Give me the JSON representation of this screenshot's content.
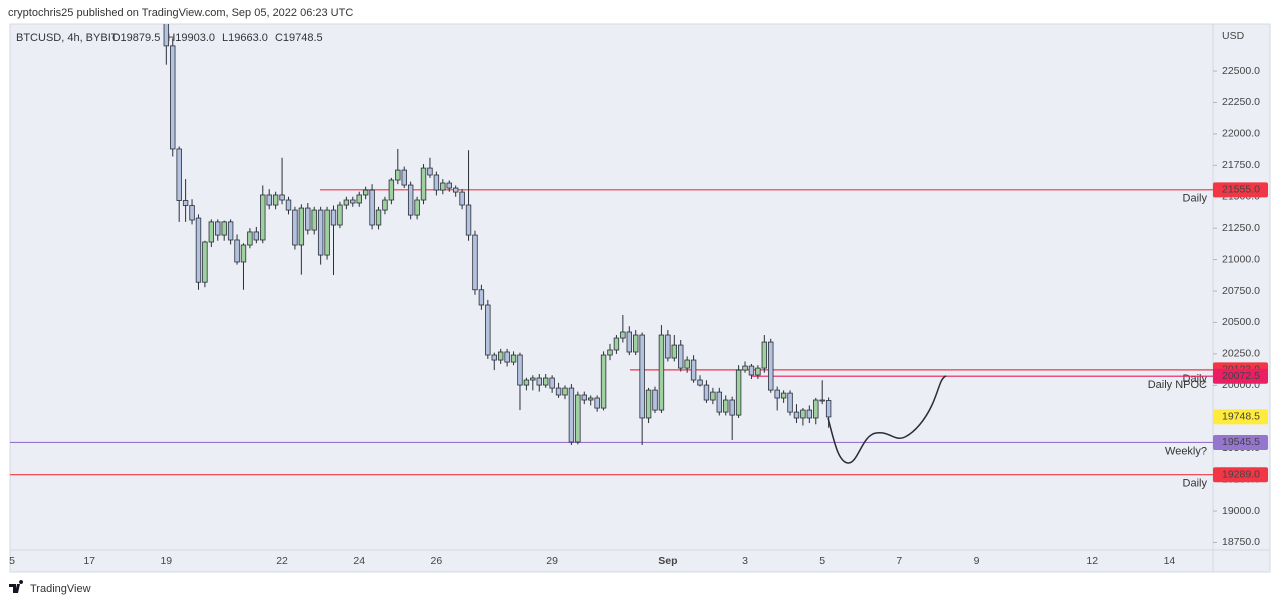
{
  "header": {
    "published": "cryptochris25 published on TradingView.com, Sep 05, 2022 06:23 UTC",
    "brand": "TradingView"
  },
  "chart_data": {
    "type": "candlestick",
    "symbol": "BTCUSD, 4h, BYBIT",
    "ohlc_legend": [
      "O19879.5",
      "H19903.0",
      "L19663.0",
      "C19748.5"
    ],
    "currency": "USD",
    "up_color": "#9fd09f",
    "down_color": "#b3c3df",
    "outline_color": "#2a2e39",
    "categories": [
      "5",
      null,
      null,
      null,
      null,
      null,
      null,
      null,
      null,
      null,
      null,
      null,
      "17",
      null,
      null,
      null,
      null,
      null,
      null,
      null,
      null,
      null,
      null,
      null,
      "19",
      null,
      null,
      null,
      null,
      null,
      null,
      null,
      null,
      null,
      null,
      null,
      null,
      null,
      null,
      null,
      null,
      null,
      "22",
      null,
      null,
      null,
      null,
      null,
      null,
      null,
      null,
      null,
      null,
      null,
      "24",
      null,
      null,
      null,
      null,
      null,
      null,
      null,
      null,
      null,
      null,
      null,
      "26",
      null,
      null,
      null,
      null,
      null,
      null,
      null,
      null,
      null,
      null,
      null,
      null,
      null,
      null,
      null,
      null,
      null,
      "29",
      null,
      null,
      null,
      null,
      null,
      null,
      null,
      null,
      null,
      null,
      null,
      null,
      null,
      null,
      null,
      null,
      null,
      "Sep",
      null,
      null,
      null,
      null,
      null,
      null,
      null,
      null,
      null,
      null,
      null,
      "3",
      null,
      null,
      null,
      null,
      null,
      null,
      null,
      null,
      null,
      null,
      null,
      "5",
      null,
      null,
      null,
      null,
      null,
      null,
      null,
      null,
      null,
      null,
      null,
      "7",
      null,
      null,
      null,
      null,
      null,
      null,
      null,
      null,
      null,
      null,
      null,
      "9",
      null,
      null,
      null,
      null,
      null,
      null,
      null,
      null,
      null,
      null,
      null,
      null,
      null,
      null,
      null,
      null,
      null,
      "12",
      null,
      null,
      null,
      null,
      null,
      null,
      null,
      null,
      null,
      null,
      null,
      "14",
      null,
      null,
      null,
      null,
      null,
      null
    ],
    "open": [
      null,
      null,
      null,
      null,
      null,
      null,
      null,
      null,
      null,
      null,
      null,
      null,
      null,
      null,
      null,
      null,
      null,
      null,
      null,
      null,
      null,
      null,
      null,
      null,
      22900,
      22700,
      21880,
      21470,
      21430,
      21330,
      20820,
      21140,
      21300,
      21195,
      21300,
      21156,
      20981,
      21116,
      21220,
      21156,
      21514,
      21434,
      21514,
      21474,
      21394,
      21116,
      21410,
      21235,
      21394,
      21036,
      21394,
      21275,
      21434,
      21474,
      21450,
      21514,
      21553,
      21275,
      21394,
      21474,
      21633,
      21712,
      21593,
      21354,
      21474,
      21728,
      21673,
      21553,
      21609,
      21569,
      21537,
      21434,
      21195,
      20760,
      20639,
      20241,
      20201,
      20265,
      20185,
      20241,
      20002,
      20042,
      20058,
      20002,
      20058,
      19978,
      19923,
      19978,
      19549,
      19923,
      19883,
      19899,
      19819,
      20241,
      20281,
      20376,
      20424,
      20265,
      20400,
      19740,
      19962,
      19803,
      20400,
      20217,
      20320,
      20137,
      20201,
      20042,
      20002,
      19883,
      19946,
      19787,
      19883,
      19763,
      20121,
      20153,
      20082,
      20137,
      20344,
      19962,
      19899,
      19938,
      19787,
      19740,
      19803,
      19740,
      19883,
      19879.5,
      null,
      null,
      null,
      null,
      null,
      null,
      null,
      null,
      null,
      null,
      null,
      null,
      null,
      null,
      null,
      null,
      null,
      null,
      null,
      null,
      null,
      null,
      null,
      null,
      null,
      null,
      null,
      null,
      null,
      null,
      null,
      null,
      null,
      null,
      null,
      null,
      null,
      null,
      null,
      null,
      null,
      null,
      null,
      null,
      null,
      null,
      null,
      null,
      null,
      null,
      null,
      null,
      null,
      null,
      null,
      null,
      null,
      null,
      null
    ],
    "high": [
      null,
      null,
      null,
      null,
      null,
      null,
      null,
      null,
      null,
      null,
      null,
      null,
      null,
      null,
      null,
      null,
      null,
      null,
      null,
      null,
      null,
      null,
      null,
      null,
      23100,
      22760,
      21900,
      21640,
      21480,
      21360,
      21150,
      21320,
      21320,
      21310,
      21320,
      21200,
      21130,
      21250,
      21260,
      21590,
      21560,
      21540,
      21810,
      21500,
      21420,
      21440,
      21450,
      21420,
      21420,
      21420,
      21430,
      21460,
      21500,
      21500,
      21540,
      21580,
      21600,
      21420,
      21500,
      21650,
      21880,
      21740,
      21620,
      21500,
      21760,
      21810,
      21700,
      21640,
      21630,
      21590,
      21560,
      21870,
      21230,
      20800,
      20680,
      20260,
      20290,
      20290,
      20270,
      20260,
      20060,
      20080,
      20090,
      20090,
      20080,
      20020,
      20000,
      20010,
      19950,
      19950,
      19920,
      19920,
      20270,
      20330,
      20400,
      20559,
      20470,
      20440,
      20420,
      19980,
      19990,
      20479,
      20440,
      20400,
      20360,
      20230,
      20240,
      20080,
      20040,
      19980,
      19980,
      19920,
      19910,
      20160,
      20190,
      20170,
      20160,
      20400,
      20370,
      19990,
      19960,
      19960,
      19850,
      19820,
      19840,
      19900,
      20040,
      19903.0,
      null,
      null,
      null,
      null,
      null,
      null,
      null,
      null,
      null,
      null,
      null,
      null,
      null,
      null,
      null,
      null,
      null,
      null,
      null,
      null,
      null,
      null,
      null,
      null,
      null,
      null,
      null,
      null,
      null,
      null,
      null,
      null,
      null,
      null,
      null,
      null,
      null,
      null,
      null,
      null,
      null,
      null,
      null,
      null,
      null,
      null,
      null,
      null,
      null,
      null,
      null,
      null,
      null,
      null,
      null,
      null,
      null,
      null,
      null
    ],
    "low": [
      null,
      null,
      null,
      null,
      null,
      null,
      null,
      null,
      null,
      null,
      null,
      null,
      null,
      null,
      null,
      null,
      null,
      null,
      null,
      null,
      null,
      null,
      null,
      null,
      22550,
      21820,
      21300,
      21300,
      21280,
      20760,
      20780,
      21100,
      21150,
      21150,
      21120,
      20960,
      20760,
      21090,
      21130,
      21130,
      21400,
      21400,
      21440,
      21360,
      21080,
      20880,
      21200,
      21200,
      20960,
      21000,
      20877,
      21250,
      21400,
      21420,
      21420,
      21480,
      21240,
      21240,
      21360,
      21440,
      21600,
      21570,
      21320,
      21320,
      21440,
      21650,
      21510,
      21520,
      21540,
      21500,
      21400,
      21150,
      20720,
      20600,
      20210,
      20121,
      20170,
      20150,
      20160,
      19803,
      19960,
      19960,
      19950,
      19980,
      19940,
      19900,
      19890,
      19525,
      19530,
      19850,
      19840,
      19790,
      19800,
      20200,
      20250,
      20340,
      20240,
      20240,
      19525,
      19700,
      19780,
      19780,
      20190,
      20190,
      20110,
      20100,
      20020,
      19990,
      19860,
      19850,
      19760,
      19760,
      19565,
      19740,
      20100,
      20050,
      20050,
      20100,
      19940,
      19800,
      19860,
      19760,
      19700,
      19680,
      19700,
      19690,
      19850,
      19663.0,
      null,
      null,
      null,
      null,
      null,
      null,
      null,
      null,
      null,
      null,
      null,
      null,
      null,
      null,
      null,
      null,
      null,
      null,
      null,
      null,
      null,
      null,
      null,
      null,
      null,
      null,
      null,
      null,
      null,
      null,
      null,
      null,
      null,
      null,
      null,
      null,
      null,
      null,
      null,
      null,
      null,
      null,
      null,
      null,
      null,
      null,
      null,
      null,
      null,
      null,
      null,
      null,
      null,
      null,
      null,
      null,
      null,
      null,
      null
    ],
    "close": [
      null,
      null,
      null,
      null,
      null,
      null,
      null,
      null,
      null,
      null,
      null,
      null,
      null,
      null,
      null,
      null,
      null,
      null,
      null,
      null,
      null,
      null,
      null,
      null,
      22700,
      21880,
      21470,
      21430,
      21315,
      20820,
      21140,
      21300,
      21195,
      21300,
      21156,
      20981,
      21116,
      21220,
      21156,
      21514,
      21434,
      21514,
      21474,
      21394,
      21116,
      21410,
      21235,
      21394,
      21036,
      21394,
      21275,
      21434,
      21474,
      21450,
      21514,
      21553,
      21275,
      21394,
      21474,
      21633,
      21712,
      21593,
      21354,
      21474,
      21728,
      21673,
      21553,
      21609,
      21569,
      21537,
      21434,
      21195,
      20760,
      20639,
      20241,
      20201,
      20265,
      20185,
      20241,
      20002,
      20042,
      20058,
      20002,
      20058,
      19978,
      19923,
      19978,
      19549,
      19923,
      19883,
      19899,
      19819,
      20241,
      20281,
      20376,
      20424,
      20265,
      20400,
      19740,
      19962,
      19803,
      20400,
      20217,
      20320,
      20137,
      20201,
      20042,
      20002,
      19883,
      19946,
      19787,
      19883,
      19763,
      20121,
      20153,
      20082,
      20137,
      20344,
      19962,
      19899,
      19938,
      19787,
      19740,
      19803,
      19740,
      19883,
      19879.5,
      19748.5,
      null,
      null,
      null,
      null,
      null,
      null,
      null,
      null,
      null,
      null,
      null,
      null,
      null,
      null,
      null,
      null,
      null,
      null,
      null,
      null,
      null,
      null,
      null,
      null,
      null,
      null,
      null,
      null,
      null,
      null,
      null,
      null,
      null,
      null,
      null,
      null,
      null,
      null,
      null,
      null,
      null,
      null,
      null,
      null,
      null,
      null,
      null,
      null,
      null,
      null,
      null,
      null,
      null,
      null,
      null,
      null,
      null,
      null,
      null
    ],
    "last_price_color": "#ffeb3b",
    "levels": {
      "values": [
        21555.0,
        20123.0,
        20072.5,
        19545.5,
        19289.0
      ],
      "value_labels": [
        "21555.0",
        "20123.0",
        "20072.5",
        "19545.5",
        "19289.0"
      ],
      "labels": [
        "Daily",
        "Daily",
        "Daily NPOC",
        "Weekly?",
        "Daily"
      ],
      "colors": [
        "#f23645",
        "#f23645",
        "#e91e63",
        "#9575cd",
        "#f23645"
      ],
      "label_colors": [
        "#787b86",
        "#787b86",
        "#2a2e39",
        "#f23645",
        "#787b86"
      ]
    },
    "ylim": [
      18690,
      22874
    ],
    "yticks": [
      {
        "value": 18750,
        "label": "18750.0"
      },
      {
        "value": 19000,
        "label": "19000.0"
      },
      {
        "value": 19250,
        "label": "19250.0"
      },
      {
        "value": 19500,
        "label": "19500.0"
      },
      {
        "value": 19750,
        "label": "19750.0"
      },
      {
        "value": 20000,
        "label": "20000.0"
      },
      {
        "value": 20250,
        "label": "20250.0"
      },
      {
        "value": 20500,
        "label": "20500.0"
      },
      {
        "value": 20750,
        "label": "20750.0"
      },
      {
        "value": 21000,
        "label": "21000.0"
      },
      {
        "value": 21250,
        "label": "21250.0"
      },
      {
        "value": 21500,
        "label": "21500.0"
      },
      {
        "value": 21750,
        "label": "21750.0"
      },
      {
        "value": 22000,
        "label": "22000.0"
      },
      {
        "value": 22250,
        "label": "22250.0"
      },
      {
        "value": 22500,
        "label": "22500.0"
      }
    ]
  }
}
